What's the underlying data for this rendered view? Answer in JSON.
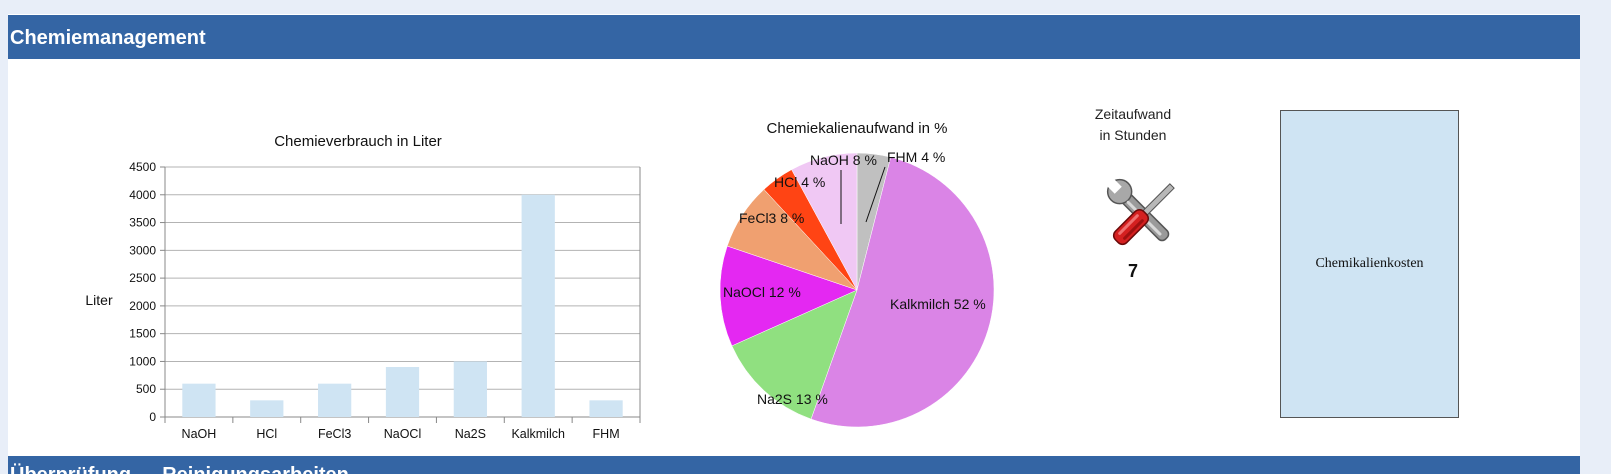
{
  "section": {
    "title": "Chemiemanagement",
    "next_title": "Überprüfung — Reinigungsarbeiten"
  },
  "chart_data": [
    {
      "type": "bar",
      "title": "Chemieverbrauch in Liter",
      "ylabel": "Liter",
      "xlabel": "",
      "categories": [
        "NaOH",
        "HCl",
        "FeCl3",
        "NaOCl",
        "Na2S",
        "Kalkmilch",
        "FHM"
      ],
      "values": [
        600,
        300,
        600,
        900,
        1000,
        4000,
        300
      ],
      "ylim": [
        0,
        4500
      ],
      "yticks": [
        0,
        500,
        1000,
        1500,
        2000,
        2500,
        3000,
        3500,
        4000,
        4500
      ],
      "grid": true,
      "bar_color": "#cfe4f3"
    },
    {
      "type": "pie",
      "title": "Chemiekalienaufwand in %",
      "slices": [
        {
          "label": "FHM 4 %",
          "value": 4,
          "color": "#c0c0c0"
        },
        {
          "label": "Kalkmilch 52 %",
          "value": 52,
          "color": "#da84e6"
        },
        {
          "label": "Na2S 13 %",
          "value": 13,
          "color": "#90e080"
        },
        {
          "label": "NaOCl 12 %",
          "value": 12,
          "color": "#e428f2"
        },
        {
          "label": "FeCl3 8 %",
          "value": 8,
          "color": "#f0a070"
        },
        {
          "label": "HCl 4 %",
          "value": 4,
          "color": "#ff4414"
        },
        {
          "label": "NaOH 8 %",
          "value": 8,
          "color": "#f0c8f4"
        }
      ]
    }
  ],
  "zeitaufwand": {
    "title_line1": "Zeitaufwand",
    "title_line2": "in Stunden",
    "value": "7",
    "icon": "tools-icon"
  },
  "kosten": {
    "label": "Chemikalienkosten"
  }
}
